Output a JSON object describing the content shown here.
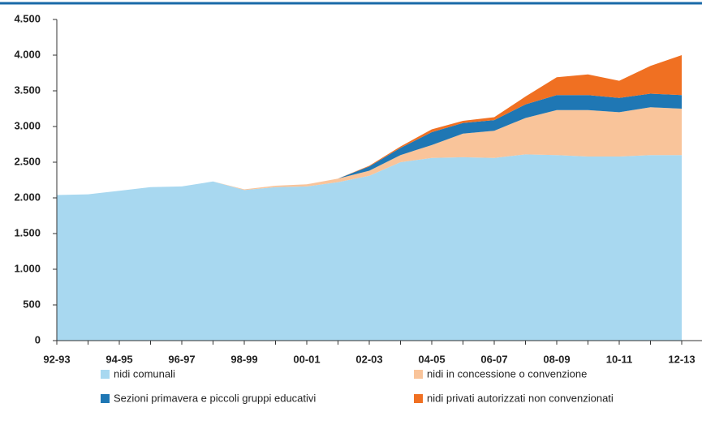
{
  "chart_data": {
    "type": "stacked-area",
    "categories": [
      "92-93",
      null,
      "94-95",
      null,
      "96-97",
      null,
      "98-99",
      null,
      "00-01",
      null,
      "02-03",
      null,
      "04-05",
      null,
      "06-07",
      null,
      "08-09",
      null,
      "10-11",
      null,
      "12-13"
    ],
    "series": [
      {
        "name": "nidi comunali",
        "color": "#a8d8f0",
        "values": [
          2040,
          2050,
          2100,
          2150,
          2160,
          2230,
          2110,
          2150,
          2160,
          2220,
          2310,
          2500,
          2560,
          2570,
          2560,
          2610,
          2600,
          2580,
          2580,
          2600,
          2600
        ]
      },
      {
        "name": "nidi in concessione o convenzione",
        "color": "#f9c49a",
        "values": [
          0,
          0,
          0,
          0,
          0,
          0,
          10,
          20,
          30,
          50,
          70,
          100,
          180,
          330,
          380,
          510,
          630,
          650,
          620,
          670,
          650
        ]
      },
      {
        "name": "Sezioni  primavera e piccoli gruppi educativi",
        "color": "#1f77b4",
        "values": [
          0,
          0,
          0,
          0,
          0,
          0,
          0,
          0,
          0,
          0,
          60,
          100,
          180,
          150,
          150,
          190,
          210,
          210,
          200,
          190,
          190
        ]
      },
      {
        "name": "nidi privati autorizzati non convenzionati",
        "color": "#f07022",
        "values": [
          0,
          0,
          0,
          0,
          0,
          0,
          0,
          0,
          0,
          0,
          10,
          20,
          40,
          30,
          40,
          110,
          250,
          290,
          240,
          390,
          560
        ]
      }
    ],
    "ylim": [
      0,
      4500
    ],
    "yticks": [
      0,
      500,
      {
        "value": 1000,
        "label": "1.000"
      },
      {
        "value": 1500,
        "label": "1.500"
      },
      {
        "value": 2000,
        "label": "2.000"
      },
      {
        "value": 2500,
        "label": "2.500"
      },
      {
        "value": 3000,
        "label": "3.000"
      },
      {
        "value": 3500,
        "label": "3.500"
      },
      {
        "value": 4000,
        "label": "4.000"
      },
      {
        "value": 4500,
        "label": "4.500"
      }
    ]
  }
}
